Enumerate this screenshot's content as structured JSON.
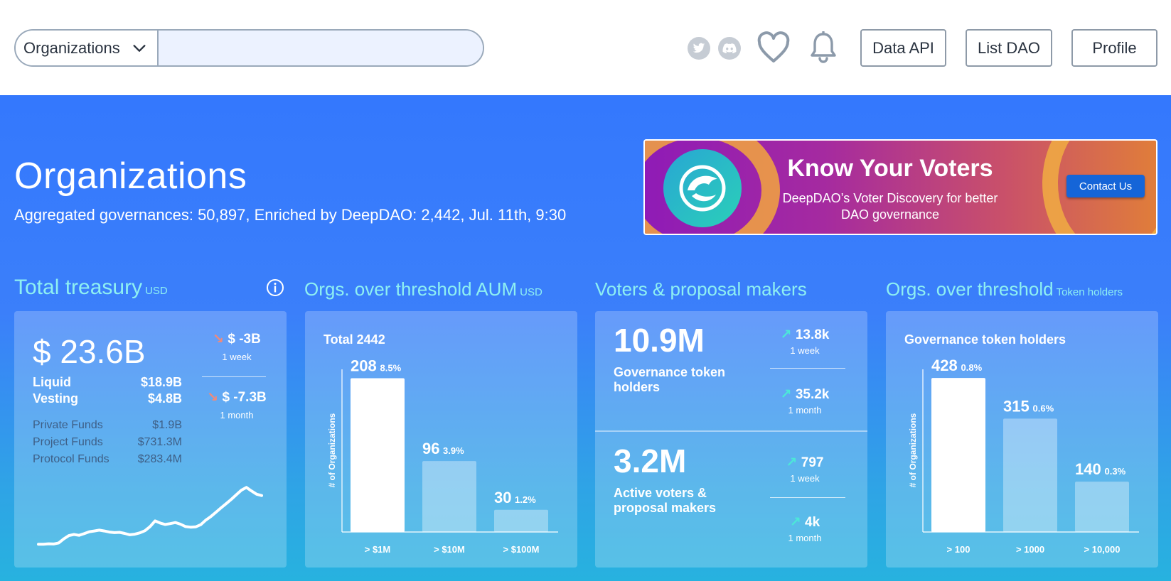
{
  "header": {
    "search_select_value": "Organizations",
    "search_placeholder": "",
    "social": [
      "twitter-icon",
      "discord-icon"
    ],
    "buttons": {
      "data_api": "Data API",
      "list_dao": "List DAO",
      "profile": "Profile"
    }
  },
  "hero": {
    "title": "Organizations",
    "subtitle": "Aggregated governances: 50,897, Enriched by DeepDAO: 2,442, Jul. 11th, 9:30"
  },
  "banner": {
    "title": "Know Your Voters",
    "text": "DeepDAO’s Voter Discovery for better DAO governance",
    "button": "Contact Us"
  },
  "treasury": {
    "title": "Total treasury",
    "unit": "USD",
    "total": "$ 23.6B",
    "rows": [
      {
        "label": "Liquid",
        "value": "$18.9B"
      },
      {
        "label": "Vesting",
        "value": "$4.8B"
      }
    ],
    "funds": [
      {
        "label": "Private Funds",
        "value": "$1.9B"
      },
      {
        "label": "Project Funds",
        "value": "$731.3M"
      },
      {
        "label": "Protocol Funds",
        "value": "$283.4M"
      }
    ],
    "changes": [
      {
        "value": "$ -3B",
        "period": "1 week"
      },
      {
        "value": "$ -7.3B",
        "period": "1 month"
      }
    ]
  },
  "aum": {
    "title": "Orgs. over threshold AUM",
    "unit": "USD",
    "label": "Total 2442"
  },
  "voters": {
    "title": "Voters & proposal makers",
    "blocks": [
      {
        "big": "10.9M",
        "label": "Governance token holders",
        "changes": [
          {
            "value": "13.8k",
            "period": "1 week"
          },
          {
            "value": "35.2k",
            "period": "1 month"
          }
        ]
      },
      {
        "big": "3.2M",
        "label": "Active voters & proposal makers",
        "changes": [
          {
            "value": "797",
            "period": "1 week"
          },
          {
            "value": "4k",
            "period": "1 month"
          }
        ]
      }
    ]
  },
  "holders": {
    "title": "Orgs. over threshold",
    "unit": "Token holders",
    "label": "Governance token holders"
  },
  "colors": {
    "accent": "#3478fd",
    "title_cyan": "#8ef0f2",
    "up_arrow": "#4ce8d8",
    "down_arrow": "#f08a7a"
  },
  "chart_data": [
    {
      "type": "bar",
      "title": "Total 2442",
      "ylabel": "# of Organizations",
      "categories": [
        "> $1M",
        "> $10M",
        "> $100M"
      ],
      "values": [
        208,
        96,
        30
      ],
      "labels": [
        "8.5%",
        "3.9%",
        "1.2%"
      ]
    },
    {
      "type": "bar",
      "title": "Governance token holders",
      "ylabel": "# of Organizations",
      "categories": [
        "> 100",
        "> 1000",
        "> 10,000"
      ],
      "values": [
        428,
        315,
        140
      ],
      "labels": [
        "0.8%",
        "0.6%",
        "0.3%"
      ]
    },
    {
      "type": "line",
      "values": [
        2,
        2,
        2.2,
        2.1,
        2.5,
        4,
        5.2,
        5.6,
        5.3,
        5.9,
        6.6,
        6.9,
        7.2,
        6.9,
        6.5,
        6.3,
        6.4,
        6.0,
        5.5,
        5.7,
        6.2,
        7.0,
        8.5,
        10.6,
        9.8,
        9.3,
        9.6,
        10.0,
        9.4,
        8.5,
        8.3,
        8.4,
        9.2,
        10.9,
        12.2,
        13.8,
        15.4,
        16.9,
        18.5,
        20.2,
        21.9,
        22.9,
        21.6,
        20.4,
        19.9
      ]
    }
  ]
}
